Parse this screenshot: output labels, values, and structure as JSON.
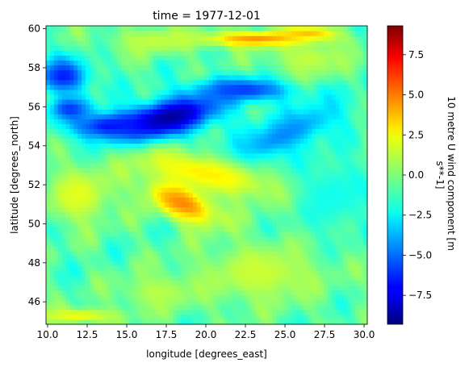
{
  "chart_data": {
    "type": "heatmap",
    "title": "time = 1977-12-01",
    "xlabel": "longitude [degrees_east]",
    "ylabel": "latitude [degrees_north]",
    "xlim": [
      9.9,
      30.2
    ],
    "ylim": [
      44.85,
      60.15
    ],
    "x_ticks": [
      10.0,
      12.5,
      15.0,
      17.5,
      20.0,
      22.5,
      25.0,
      27.5,
      30.0
    ],
    "x_tick_labels": [
      "10.0",
      "12.5",
      "15.0",
      "17.5",
      "20.0",
      "22.5",
      "25.0",
      "27.5",
      "30.0"
    ],
    "y_ticks": [
      46,
      48,
      50,
      52,
      54,
      56,
      58,
      60
    ],
    "y_tick_labels": [
      "46",
      "48",
      "50",
      "52",
      "54",
      "56",
      "58",
      "60"
    ],
    "colorbar": {
      "label": "10 metre U wind component [m s**-1]",
      "label_lines": [
        "10 metre U wind component [m",
        "s**-1]"
      ],
      "colormap": "jet",
      "vmin": -9.3,
      "vmax": 9.3,
      "ticks": [
        7.5,
        5.0,
        2.5,
        0.0,
        -2.5,
        -5.0,
        -7.5
      ],
      "tick_labels": [
        "7.5",
        "5.0",
        "2.5",
        "0.0",
        "−2.5",
        "−5.0",
        "−7.5"
      ]
    },
    "grid": false,
    "field": {
      "background": -0.8,
      "features": [
        {
          "lon": 17.5,
          "lat": 55.4,
          "value": -9.0,
          "rlon": 3.6,
          "rlat": 1.0,
          "rot": 12
        },
        {
          "lon": 14.0,
          "lat": 55.0,
          "value": -7.0,
          "rlon": 2.5,
          "rlat": 0.7,
          "rot": 0
        },
        {
          "lon": 11.0,
          "lat": 57.6,
          "value": -6.5,
          "rlon": 1.6,
          "rlat": 0.9,
          "rot": 0
        },
        {
          "lon": 11.4,
          "lat": 55.9,
          "value": -6.0,
          "rlon": 1.3,
          "rlat": 0.6,
          "rot": 0
        },
        {
          "lon": 22.5,
          "lat": 56.9,
          "value": -6.0,
          "rlon": 3.0,
          "rlat": 0.6,
          "rot": 0
        },
        {
          "lon": 25.0,
          "lat": 54.6,
          "value": -4.5,
          "rlon": 4.0,
          "rlat": 1.0,
          "rot": 20
        },
        {
          "lon": 18.5,
          "lat": 51.1,
          "value": 4.6,
          "rlon": 2.4,
          "rlat": 0.9,
          "rot": -18
        },
        {
          "lon": 23.5,
          "lat": 59.5,
          "value": 4.5,
          "rlon": 4.0,
          "rlat": 0.4,
          "rot": 0
        },
        {
          "lon": 26.5,
          "lat": 59.8,
          "value": 4.0,
          "rlon": 1.6,
          "rlat": 0.3,
          "rot": 0
        },
        {
          "lon": 20.0,
          "lat": 52.6,
          "value": 2.6,
          "rlon": 5.0,
          "rlat": 1.0,
          "rot": -10
        },
        {
          "lon": 12.0,
          "lat": 51.5,
          "value": 1.8,
          "rlon": 2.2,
          "rlat": 1.5,
          "rot": 0
        },
        {
          "lon": 23.5,
          "lat": 47.5,
          "value": 1.4,
          "rlon": 4.0,
          "rlat": 1.6,
          "rot": 0
        },
        {
          "lon": 17.0,
          "lat": 46.5,
          "value": 1.0,
          "rlon": 2.5,
          "rlat": 1.0,
          "rot": 0
        },
        {
          "lon": 12.0,
          "lat": 45.3,
          "value": 2.2,
          "rlon": 2.5,
          "rlat": 0.4,
          "rot": 0
        },
        {
          "lon": 16.8,
          "lat": 59.4,
          "value": 1.2,
          "rlon": 3.0,
          "rlat": 0.7,
          "rot": 0
        },
        {
          "lon": 26.5,
          "lat": 58.5,
          "value": 1.2,
          "rlon": 2.5,
          "rlat": 1.0,
          "rot": 0
        },
        {
          "lon": 28.0,
          "lat": 51.5,
          "value": -2.0,
          "rlon": 2.5,
          "rlat": 2.0,
          "rot": 0
        }
      ]
    }
  }
}
